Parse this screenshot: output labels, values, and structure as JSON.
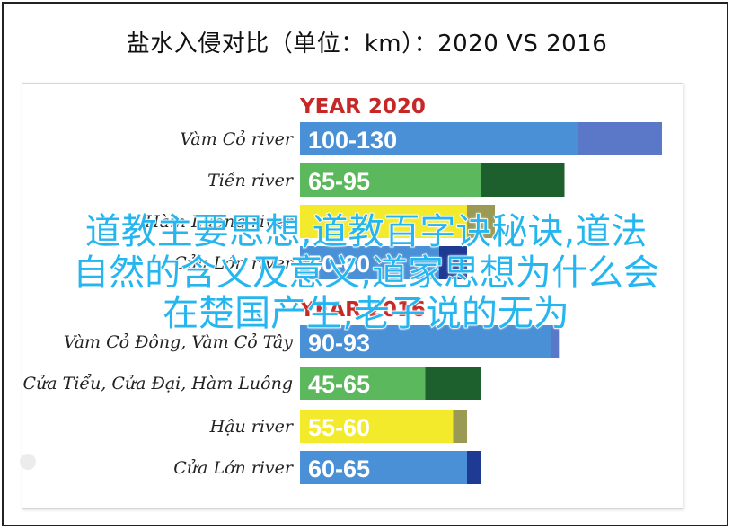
{
  "title": "盐水入侵对比（单位：km）：2020 VS 2016",
  "overlay_lines": [
    "道教主要思想,道教百字诀秘诀,道法",
    "自然的含义及意义,道家思想为什么会",
    "在楚国产生,老子说的无为"
  ],
  "colors": {
    "year_label": "#c62828",
    "blue": "#4a90d6",
    "blue_dark": "#5b78c8",
    "green": "#5cb85c",
    "green_dark": "#1e5f2e",
    "yellow": "#f2ea2a",
    "yellow_dark": "#9a9a55",
    "navy": "#1f3a93",
    "overlay_text": "#25b6f0"
  },
  "chart_data": [
    {
      "type": "bar",
      "title": "YEAR 2020",
      "categories": [
        "Vàm Cỏ river",
        "Tiền river",
        "Hàm Luông river",
        "Cửa Lớn river"
      ],
      "series": [
        {
          "values_min": [
            100,
            65,
            60,
            50
          ],
          "values_max": [
            130,
            95,
            70,
            60
          ]
        }
      ],
      "value_labels": [
        "100-130",
        "65-95",
        "",
        "50-60"
      ],
      "colors": [
        "#4a90d6",
        "#5cb85c",
        "#f2ea2a",
        "#4a90d6"
      ],
      "xlim": [
        0,
        140
      ]
    },
    {
      "type": "bar",
      "title": "YEAR 2016",
      "categories": [
        "Vàm Cỏ Đông, Vàm Cỏ Tây",
        "Cửa Tiểu, Cửa Đại, Hàm Luông",
        "Hậu river",
        "Cửa Lớn river"
      ],
      "series": [
        {
          "values_min": [
            90,
            45,
            55,
            60
          ],
          "values_max": [
            93,
            65,
            60,
            65
          ]
        }
      ],
      "value_labels": [
        "90-93",
        "45-65",
        "55-60",
        "60-65"
      ],
      "colors": [
        "#4a90d6",
        "#5cb85c",
        "#f2ea2a",
        "#4a90d6"
      ],
      "xlim": [
        0,
        140
      ]
    }
  ]
}
